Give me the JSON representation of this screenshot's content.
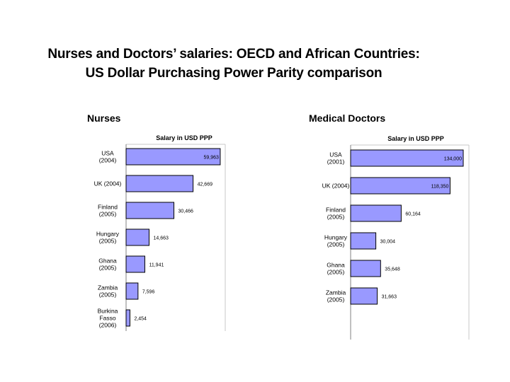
{
  "page": {
    "title_line1": "Nurses and Doctors’ salaries:  OECD and African Countries:",
    "title_line2": "US Dollar Purchasing Power Parity  comparison"
  },
  "colors": {
    "bar_fill": "#9999ff",
    "bar_stroke": "#000000",
    "axis": "#808080"
  },
  "chart_data": [
    {
      "type": "bar",
      "orientation": "horizontal",
      "title": "Nurses",
      "xlabel": "Salary in USD PPP",
      "xlim": [
        0,
        60000
      ],
      "categories": [
        [
          "USA",
          "(2004)"
        ],
        [
          "UK (2004)"
        ],
        [
          "Finland",
          "(2005)"
        ],
        [
          "Hungary",
          "(2005)"
        ],
        [
          "Ghana",
          "(2005)"
        ],
        [
          "Zambia",
          "(2005)"
        ],
        [
          "Burkina",
          "Fasso",
          "(2006)"
        ]
      ],
      "values": [
        59963,
        42669,
        30466,
        14663,
        11941,
        7596,
        2454
      ],
      "value_labels": [
        "59,963",
        "42,669",
        "30,466",
        "14,663",
        "11,941",
        "7,596",
        "2,454"
      ]
    },
    {
      "type": "bar",
      "orientation": "horizontal",
      "title": "Medical Doctors",
      "xlabel": "Salary in USD PPP",
      "xlim": [
        0,
        134000
      ],
      "categories": [
        [
          "USA",
          "(2001)"
        ],
        [
          "UK (2004)"
        ],
        [
          "Finland",
          "(2005)"
        ],
        [
          "Hungary",
          "(2005)"
        ],
        [
          "Ghana",
          "(2005)"
        ],
        [
          "Zambia",
          "(2005)"
        ]
      ],
      "values": [
        134000,
        118350,
        60164,
        30004,
        35648,
        31663
      ],
      "value_labels": [
        "134,000",
        "118,350",
        "60,164",
        "30,004",
        "35,648",
        "31,663"
      ]
    }
  ]
}
